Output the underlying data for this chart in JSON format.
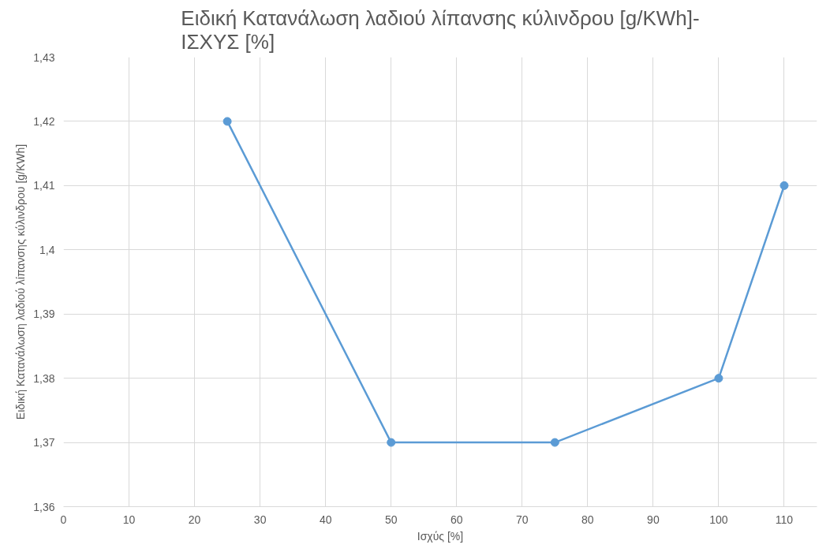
{
  "chart_data": {
    "type": "line",
    "title": "Ειδική Κατανάλωση λαδιού λίπανσης κύλινδρου [g/KWh]-\nΙΣΧΥΣ [%]",
    "xlabel": "Ισχύς [%]",
    "ylabel": "Ειδική Κατανάλωση λαδιού λίπανσης κύλινδρου [g/KWh]",
    "x": [
      25,
      50,
      75,
      100,
      110
    ],
    "series": [
      {
        "color": "#5b9bd5",
        "values": [
          1.42,
          1.37,
          1.37,
          1.38,
          1.41
        ]
      }
    ],
    "xlim": [
      0,
      115
    ],
    "xticks": [
      0,
      10,
      20,
      30,
      40,
      50,
      60,
      70,
      80,
      90,
      100,
      110
    ],
    "ylim": [
      1.36,
      1.43
    ],
    "yticks": [
      {
        "value": 1.36,
        "label": "1,36"
      },
      {
        "value": 1.37,
        "label": "1,37"
      },
      {
        "value": 1.38,
        "label": "1,38"
      },
      {
        "value": 1.39,
        "label": "1,39"
      },
      {
        "value": 1.4,
        "label": "1,4"
      },
      {
        "value": 1.41,
        "label": "1,41"
      },
      {
        "value": 1.42,
        "label": "1,42"
      },
      {
        "value": 1.43,
        "label": "1,43"
      }
    ],
    "grid": true,
    "marker": "circle",
    "line_style": "solid"
  }
}
